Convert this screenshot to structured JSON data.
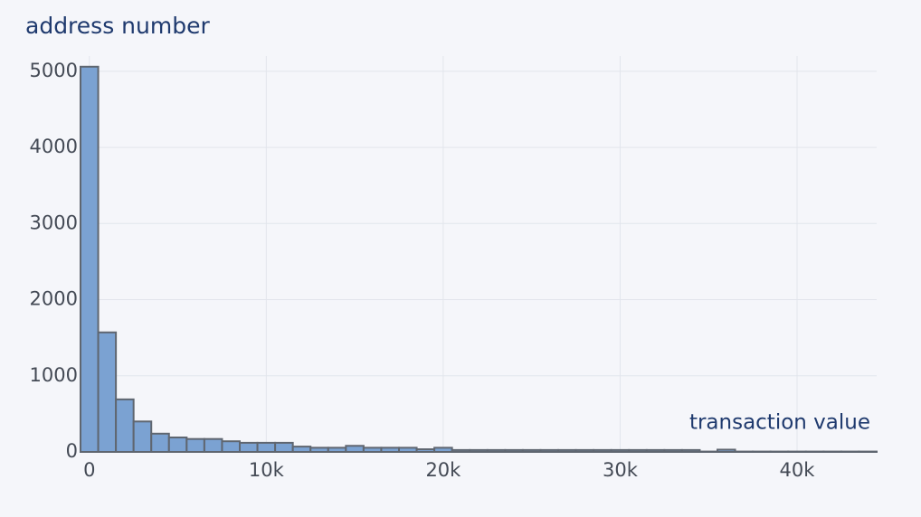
{
  "chart_data": {
    "type": "histogram",
    "y_title": "address number",
    "x_title": "transaction value",
    "bins": [
      -500,
      500,
      1500,
      2500,
      3500,
      4500,
      5500,
      6500,
      7500,
      8500,
      9500,
      10500,
      11500,
      12500,
      13500,
      14500,
      15500,
      16500,
      17500,
      18500,
      19500,
      20500,
      21500,
      22500,
      23500,
      24500,
      25500,
      26500,
      27500,
      28500,
      29500,
      30500,
      31500,
      32500,
      33500,
      34500,
      35500,
      36500,
      37500,
      38500,
      39500,
      40500,
      41500,
      42500,
      43500,
      44500
    ],
    "values": [
      5060,
      1570,
      690,
      400,
      240,
      190,
      170,
      170,
      140,
      120,
      120,
      120,
      70,
      55,
      55,
      80,
      55,
      55,
      55,
      35,
      55,
      25,
      25,
      25,
      25,
      25,
      25,
      25,
      25,
      25,
      25,
      25,
      25,
      25,
      25,
      5,
      30,
      5,
      5,
      5,
      5,
      5,
      5,
      5,
      5
    ],
    "color": "#7ba2d2",
    "edge_color": "#5f6670",
    "xlim": [
      -500,
      44500
    ],
    "ylim": [
      0,
      5200
    ],
    "xticks": [
      0,
      {
        "value": 10000,
        "label": "10k"
      },
      {
        "value": 20000,
        "label": "20k"
      },
      {
        "value": 30000,
        "label": "30k"
      },
      {
        "value": 40000,
        "label": "40k"
      }
    ],
    "yticks": [
      0,
      1000,
      2000,
      3000,
      4000,
      5000
    ],
    "grid": true
  }
}
